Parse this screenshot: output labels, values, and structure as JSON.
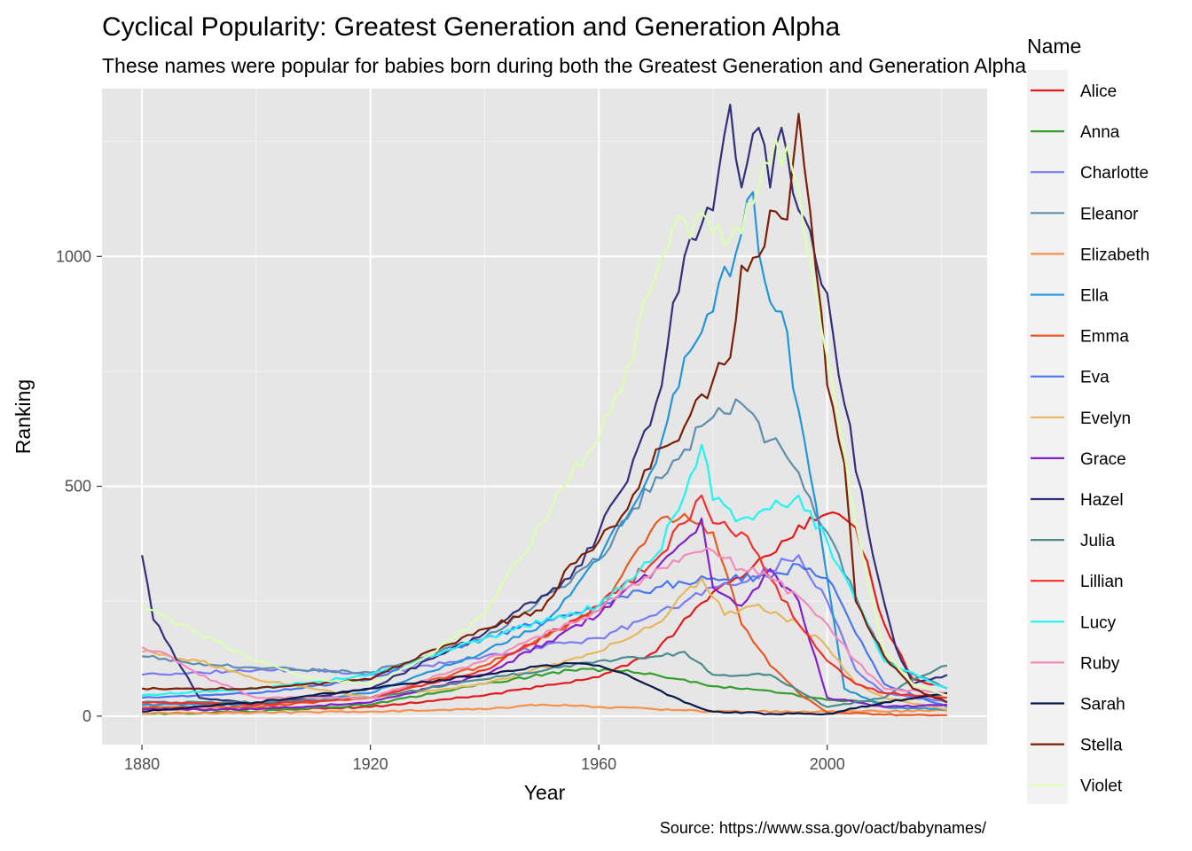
{
  "chart_data": {
    "type": "line",
    "title": "Cyclical Popularity: Greatest Generation and Generation Alpha",
    "subtitle": "These names were popular for babies born during both the Greatest Generation and Generation Alpha",
    "xlabel": "Year",
    "ylabel": "Ranking",
    "caption": "Source: https://www.ssa.gov/oact/babynames/",
    "xlim": [
      1873,
      2028
    ],
    "ylim": [
      -62,
      1365
    ],
    "x_ticks": [
      1880,
      1920,
      1960,
      2000
    ],
    "x_tick_labels": [
      "1880",
      "1920",
      "1960",
      "2000"
    ],
    "y_ticks": [
      0,
      500,
      1000
    ],
    "y_tick_labels": [
      "0",
      "500",
      "1000"
    ],
    "grid": true,
    "legend": {
      "title": "Name",
      "position": "right"
    },
    "series": [
      {
        "name": "Alice",
        "color": "#e31a1c",
        "points": [
          [
            1880,
            15
          ],
          [
            1900,
            15
          ],
          [
            1920,
            20
          ],
          [
            1940,
            45
          ],
          [
            1960,
            85
          ],
          [
            1970,
            140
          ],
          [
            1980,
            270
          ],
          [
            1990,
            350
          ],
          [
            1995,
            415
          ],
          [
            2000,
            440
          ],
          [
            2005,
            410
          ],
          [
            2010,
            200
          ],
          [
            2015,
            80
          ],
          [
            2021,
            60
          ]
        ]
      },
      {
        "name": "Anna",
        "color": "#33a02c",
        "points": [
          [
            1880,
            5
          ],
          [
            1900,
            10
          ],
          [
            1920,
            25
          ],
          [
            1940,
            70
          ],
          [
            1955,
            100
          ],
          [
            1965,
            100
          ],
          [
            1970,
            90
          ],
          [
            1980,
            65
          ],
          [
            1990,
            55
          ],
          [
            2000,
            35
          ],
          [
            2010,
            30
          ],
          [
            2021,
            50
          ]
        ]
      },
      {
        "name": "Charlotte",
        "color": "#7b7bf5",
        "points": [
          [
            1880,
            90
          ],
          [
            1900,
            100
          ],
          [
            1910,
            100
          ],
          [
            1920,
            90
          ],
          [
            1940,
            130
          ],
          [
            1960,
            170
          ],
          [
            1970,
            220
          ],
          [
            1980,
            280
          ],
          [
            1985,
            290
          ],
          [
            1995,
            350
          ],
          [
            2000,
            250
          ],
          [
            2005,
            100
          ],
          [
            2010,
            50
          ],
          [
            2021,
            30
          ]
        ]
      },
      {
        "name": "Eleanor",
        "color": "#5f8faf",
        "points": [
          [
            1880,
            130
          ],
          [
            1890,
            115
          ],
          [
            1900,
            105
          ],
          [
            1920,
            95
          ],
          [
            1940,
            170
          ],
          [
            1960,
            340
          ],
          [
            1970,
            520
          ],
          [
            1975,
            580
          ],
          [
            1980,
            650
          ],
          [
            1985,
            680
          ],
          [
            1990,
            600
          ],
          [
            1995,
            530
          ],
          [
            2000,
            400
          ],
          [
            2005,
            260
          ],
          [
            2010,
            120
          ],
          [
            2021,
            60
          ]
        ]
      },
      {
        "name": "Elizabeth",
        "color": "#f4944c",
        "points": [
          [
            1880,
            5
          ],
          [
            1920,
            10
          ],
          [
            1940,
            15
          ],
          [
            1950,
            25
          ],
          [
            1960,
            20
          ],
          [
            1970,
            15
          ],
          [
            1980,
            10
          ],
          [
            2000,
            10
          ],
          [
            2021,
            12
          ]
        ]
      },
      {
        "name": "Ella",
        "color": "#2596d9",
        "points": [
          [
            1880,
            25
          ],
          [
            1900,
            25
          ],
          [
            1920,
            50
          ],
          [
            1940,
            140
          ],
          [
            1950,
            200
          ],
          [
            1960,
            340
          ],
          [
            1970,
            550
          ],
          [
            1975,
            780
          ],
          [
            1980,
            880
          ],
          [
            1985,
            1050
          ],
          [
            1987,
            1140
          ],
          [
            1989,
            950
          ],
          [
            1992,
            880
          ],
          [
            1996,
            600
          ],
          [
            2000,
            300
          ],
          [
            2003,
            60
          ],
          [
            2010,
            20
          ],
          [
            2021,
            15
          ]
        ]
      },
      {
        "name": "Emma",
        "color": "#e85a24",
        "points": [
          [
            1880,
            20
          ],
          [
            1900,
            20
          ],
          [
            1920,
            40
          ],
          [
            1940,
            110
          ],
          [
            1960,
            230
          ],
          [
            1970,
            420
          ],
          [
            1975,
            440
          ],
          [
            1980,
            400
          ],
          [
            1985,
            200
          ],
          [
            1990,
            110
          ],
          [
            1995,
            50
          ],
          [
            2000,
            8
          ],
          [
            2010,
            3
          ],
          [
            2021,
            2
          ]
        ]
      },
      {
        "name": "Eva",
        "color": "#4a76f0",
        "points": [
          [
            1880,
            40
          ],
          [
            1900,
            50
          ],
          [
            1920,
            80
          ],
          [
            1940,
            170
          ],
          [
            1960,
            240
          ],
          [
            1970,
            280
          ],
          [
            1980,
            300
          ],
          [
            1990,
            300
          ],
          [
            1995,
            330
          ],
          [
            2000,
            300
          ],
          [
            2005,
            180
          ],
          [
            2010,
            70
          ],
          [
            2021,
            20
          ]
        ]
      },
      {
        "name": "Evelyn",
        "color": "#e6b85e",
        "points": [
          [
            1880,
            140
          ],
          [
            1890,
            120
          ],
          [
            1900,
            80
          ],
          [
            1920,
            40
          ],
          [
            1940,
            70
          ],
          [
            1960,
            140
          ],
          [
            1970,
            200
          ],
          [
            1978,
            300
          ],
          [
            1982,
            220
          ],
          [
            1987,
            240
          ],
          [
            1995,
            200
          ],
          [
            2000,
            150
          ],
          [
            2005,
            70
          ],
          [
            2010,
            40
          ],
          [
            2021,
            15
          ]
        ]
      },
      {
        "name": "Grace",
        "color": "#8420c8",
        "points": [
          [
            1880,
            15
          ],
          [
            1900,
            15
          ],
          [
            1920,
            30
          ],
          [
            1940,
            90
          ],
          [
            1960,
            220
          ],
          [
            1970,
            320
          ],
          [
            1975,
            380
          ],
          [
            1978,
            430
          ],
          [
            1980,
            280
          ],
          [
            1985,
            240
          ],
          [
            1990,
            320
          ],
          [
            1995,
            250
          ],
          [
            2000,
            40
          ],
          [
            2010,
            20
          ],
          [
            2021,
            25
          ]
        ]
      },
      {
        "name": "Hazel",
        "color": "#32307a",
        "points": [
          [
            1880,
            350
          ],
          [
            1882,
            210
          ],
          [
            1885,
            150
          ],
          [
            1890,
            40
          ],
          [
            1900,
            25
          ],
          [
            1920,
            60
          ],
          [
            1940,
            180
          ],
          [
            1955,
            300
          ],
          [
            1960,
            400
          ],
          [
            1965,
            510
          ],
          [
            1970,
            680
          ],
          [
            1975,
            1000
          ],
          [
            1980,
            1100
          ],
          [
            1983,
            1330
          ],
          [
            1985,
            1150
          ],
          [
            1988,
            1280
          ],
          [
            1990,
            1150
          ],
          [
            1992,
            1280
          ],
          [
            1995,
            1100
          ],
          [
            2000,
            920
          ],
          [
            2003,
            680
          ],
          [
            2008,
            350
          ],
          [
            2012,
            150
          ],
          [
            2015,
            70
          ],
          [
            2021,
            90
          ]
        ]
      },
      {
        "name": "Julia",
        "color": "#4d8c8c",
        "points": [
          [
            1880,
            30
          ],
          [
            1900,
            30
          ],
          [
            1920,
            40
          ],
          [
            1940,
            80
          ],
          [
            1960,
            120
          ],
          [
            1970,
            130
          ],
          [
            1975,
            140
          ],
          [
            1980,
            90
          ],
          [
            1990,
            90
          ],
          [
            2000,
            20
          ],
          [
            2010,
            40
          ],
          [
            2015,
            80
          ],
          [
            2021,
            110
          ]
        ]
      },
      {
        "name": "Lillian",
        "color": "#f0312e",
        "points": [
          [
            1880,
            30
          ],
          [
            1900,
            25
          ],
          [
            1920,
            40
          ],
          [
            1940,
            100
          ],
          [
            1960,
            240
          ],
          [
            1970,
            340
          ],
          [
            1975,
            420
          ],
          [
            1978,
            480
          ],
          [
            1980,
            420
          ],
          [
            1985,
            400
          ],
          [
            1990,
            300
          ],
          [
            1995,
            200
          ],
          [
            2000,
            120
          ],
          [
            2005,
            70
          ],
          [
            2010,
            50
          ],
          [
            2021,
            40
          ]
        ]
      },
      {
        "name": "Lucy",
        "color": "#1ff5f5",
        "points": [
          [
            1880,
            45
          ],
          [
            1900,
            60
          ],
          [
            1920,
            90
          ],
          [
            1940,
            170
          ],
          [
            1960,
            240
          ],
          [
            1970,
            350
          ],
          [
            1975,
            480
          ],
          [
            1978,
            590
          ],
          [
            1980,
            470
          ],
          [
            1985,
            430
          ],
          [
            1990,
            450
          ],
          [
            1995,
            480
          ],
          [
            2000,
            380
          ],
          [
            2005,
            250
          ],
          [
            2010,
            120
          ],
          [
            2021,
            60
          ]
        ]
      },
      {
        "name": "Ruby",
        "color": "#f28cbd",
        "points": [
          [
            1880,
            150
          ],
          [
            1885,
            130
          ],
          [
            1890,
            90
          ],
          [
            1900,
            40
          ],
          [
            1920,
            40
          ],
          [
            1940,
            120
          ],
          [
            1960,
            230
          ],
          [
            1970,
            320
          ],
          [
            1975,
            350
          ],
          [
            1980,
            360
          ],
          [
            1985,
            320
          ],
          [
            1990,
            300
          ],
          [
            1995,
            260
          ],
          [
            2000,
            200
          ],
          [
            2005,
            120
          ],
          [
            2010,
            60
          ],
          [
            2021,
            50
          ]
        ]
      },
      {
        "name": "Sarah",
        "color": "#0a1a4a",
        "points": [
          [
            1880,
            10
          ],
          [
            1900,
            30
          ],
          [
            1920,
            60
          ],
          [
            1940,
            90
          ],
          [
            1950,
            110
          ],
          [
            1955,
            115
          ],
          [
            1960,
            110
          ],
          [
            1965,
            90
          ],
          [
            1970,
            60
          ],
          [
            1975,
            30
          ],
          [
            1980,
            10
          ],
          [
            1990,
            5
          ],
          [
            2000,
            5
          ],
          [
            2010,
            30
          ],
          [
            2021,
            50
          ]
        ]
      },
      {
        "name": "Stella",
        "color": "#7a2005",
        "points": [
          [
            1880,
            60
          ],
          [
            1890,
            60
          ],
          [
            1900,
            60
          ],
          [
            1920,
            80
          ],
          [
            1930,
            140
          ],
          [
            1940,
            190
          ],
          [
            1950,
            230
          ],
          [
            1955,
            330
          ],
          [
            1960,
            380
          ],
          [
            1965,
            450
          ],
          [
            1970,
            580
          ],
          [
            1975,
            630
          ],
          [
            1978,
            700
          ],
          [
            1980,
            730
          ],
          [
            1983,
            780
          ],
          [
            1985,
            980
          ],
          [
            1988,
            1000
          ],
          [
            1990,
            1100
          ],
          [
            1993,
            1080
          ],
          [
            1995,
            1310
          ],
          [
            1997,
            1100
          ],
          [
            2000,
            720
          ],
          [
            2003,
            550
          ],
          [
            2005,
            250
          ],
          [
            2010,
            130
          ],
          [
            2015,
            60
          ],
          [
            2021,
            30
          ]
        ]
      },
      {
        "name": "Violet",
        "color": "#dcffb0",
        "points": [
          [
            1880,
            240
          ],
          [
            1885,
            210
          ],
          [
            1890,
            180
          ],
          [
            1900,
            120
          ],
          [
            1910,
            80
          ],
          [
            1920,
            70
          ],
          [
            1930,
            130
          ],
          [
            1940,
            220
          ],
          [
            1950,
            420
          ],
          [
            1955,
            520
          ],
          [
            1960,
            600
          ],
          [
            1965,
            760
          ],
          [
            1970,
            960
          ],
          [
            1975,
            1080
          ],
          [
            1980,
            1050
          ],
          [
            1985,
            1050
          ],
          [
            1990,
            1200
          ],
          [
            1993,
            1240
          ],
          [
            1995,
            1150
          ],
          [
            2000,
            780
          ],
          [
            2005,
            420
          ],
          [
            2010,
            140
          ],
          [
            2015,
            70
          ],
          [
            2021,
            45
          ]
        ]
      }
    ]
  }
}
